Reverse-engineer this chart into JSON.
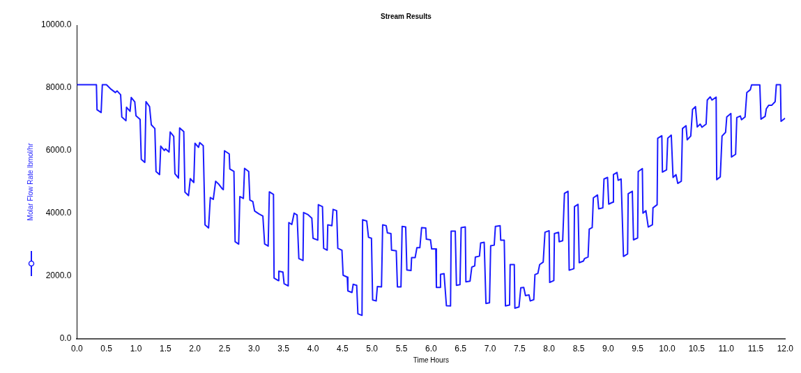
{
  "chart_data": {
    "type": "line",
    "title": "Stream Results",
    "xlabel": "Time Hours",
    "ylabel": "Molar Flow Rate lbmol/hr",
    "xlim": [
      0,
      12
    ],
    "ylim": [
      0,
      10000
    ],
    "xticks": [
      {
        "value": 0,
        "label": "0.0"
      },
      {
        "value": 0.5,
        "label": "0.5"
      },
      {
        "value": 1,
        "label": "1.0"
      },
      {
        "value": 1.5,
        "label": "1.5"
      },
      {
        "value": 2,
        "label": "2.0"
      },
      {
        "value": 2.5,
        "label": "2.5"
      },
      {
        "value": 3,
        "label": "3.0"
      },
      {
        "value": 3.5,
        "label": "3.5"
      },
      {
        "value": 4,
        "label": "4.0"
      },
      {
        "value": 4.5,
        "label": "4.5"
      },
      {
        "value": 5,
        "label": "5.0"
      },
      {
        "value": 5.5,
        "label": "5.5"
      },
      {
        "value": 6,
        "label": "6.0"
      },
      {
        "value": 6.5,
        "label": "6.5"
      },
      {
        "value": 7,
        "label": "7.0"
      },
      {
        "value": 7.5,
        "label": "7.5"
      },
      {
        "value": 8,
        "label": "8.0"
      },
      {
        "value": 8.5,
        "label": "8.5"
      },
      {
        "value": 9,
        "label": "9.0"
      },
      {
        "value": 9.5,
        "label": "9.5"
      },
      {
        "value": 10,
        "label": "10.0"
      },
      {
        "value": 10.5,
        "label": "10.5"
      },
      {
        "value": 11,
        "label": "11.0"
      },
      {
        "value": 11.5,
        "label": "11.5"
      },
      {
        "value": 12,
        "label": "12.0"
      }
    ],
    "yticks": [
      {
        "value": 0,
        "label": "0.0"
      },
      {
        "value": 2000,
        "label": "2000.0"
      },
      {
        "value": 4000,
        "label": "4000.0"
      },
      {
        "value": 6000,
        "label": "6000.0"
      },
      {
        "value": 8000,
        "label": "8000.0"
      },
      {
        "value": 10000,
        "label": "10000.0"
      }
    ],
    "grid": false,
    "marker": "none",
    "line_style": "solid",
    "series": [
      {
        "color": "#1a1aff",
        "x": [
          0,
          0.33,
          0.34,
          0.41,
          0.43,
          0.5,
          0.58,
          0.65,
          0.68,
          0.74,
          0.76,
          0.83,
          0.84,
          0.9,
          0.92,
          0.98,
          1.0,
          1.07,
          1.09,
          1.15,
          1.17,
          1.23,
          1.26,
          1.32,
          1.34,
          1.4,
          1.42,
          1.48,
          1.5,
          1.56,
          1.58,
          1.64,
          1.66,
          1.72,
          1.74,
          1.81,
          1.83,
          1.89,
          1.92,
          1.98,
          2.0,
          2.06,
          2.08,
          2.14,
          2.17,
          2.23,
          2.26,
          2.31,
          2.35,
          2.4,
          2.46,
          2.48,
          2.5,
          2.58,
          2.59,
          2.66,
          2.68,
          2.74,
          2.76,
          2.82,
          2.84,
          2.91,
          2.93,
          2.98,
          3.01,
          3.08,
          3.15,
          3.18,
          3.24,
          3.26,
          3.33,
          3.34,
          3.41,
          3.42,
          3.49,
          3.51,
          3.58,
          3.59,
          3.64,
          3.68,
          3.73,
          3.76,
          3.83,
          3.84,
          3.91,
          3.98,
          4.0,
          4.08,
          4.09,
          4.16,
          4.18,
          4.24,
          4.25,
          4.32,
          4.34,
          4.4,
          4.42,
          4.49,
          4.51,
          4.58,
          4.59,
          4.66,
          4.68,
          4.74,
          4.76,
          4.83,
          4.84,
          4.91,
          4.94,
          4.99,
          5.01,
          5.07,
          5.09,
          5.16,
          5.18,
          5.24,
          5.26,
          5.32,
          5.33,
          5.41,
          5.43,
          5.49,
          5.51,
          5.57,
          5.59,
          5.66,
          5.67,
          5.73,
          5.76,
          5.81,
          5.84,
          5.91,
          5.92,
          5.99,
          6.01,
          6.08,
          6.09,
          6.15,
          6.16,
          6.22,
          6.26,
          6.33,
          6.34,
          6.41,
          6.43,
          6.49,
          6.51,
          6.58,
          6.59,
          6.66,
          6.69,
          6.74,
          6.75,
          6.82,
          6.84,
          6.9,
          6.93,
          6.99,
          7.01,
          7.07,
          7.09,
          7.17,
          7.18,
          7.24,
          7.26,
          7.33,
          7.34,
          7.41,
          7.42,
          7.49,
          7.52,
          7.57,
          7.6,
          7.66,
          7.68,
          7.74,
          7.76,
          7.81,
          7.84,
          7.9,
          7.93,
          8.0,
          8.01,
          8.08,
          8.09,
          8.16,
          8.17,
          8.23,
          8.26,
          8.32,
          8.34,
          8.42,
          8.43,
          8.49,
          8.51,
          8.58,
          8.6,
          8.66,
          8.68,
          8.73,
          8.75,
          8.82,
          8.84,
          8.91,
          8.93,
          8.99,
          9.01,
          9.08,
          9.09,
          9.15,
          9.17,
          9.22,
          9.26,
          9.33,
          9.34,
          9.41,
          9.43,
          9.5,
          9.51,
          9.58,
          9.59,
          9.64,
          9.68,
          9.75,
          9.76,
          9.83,
          9.84,
          9.91,
          9.92,
          9.99,
          10.01,
          10.07,
          10.1,
          10.15,
          10.18,
          10.24,
          10.26,
          10.32,
          10.34,
          10.4,
          10.43,
          10.48,
          10.51,
          10.56,
          10.59,
          10.66,
          10.68,
          10.73,
          10.76,
          10.83,
          10.84,
          10.9,
          10.93,
          10.99,
          11.01,
          11.08,
          11.09,
          11.16,
          11.18,
          11.24,
          11.26,
          11.32,
          11.35,
          11.41,
          11.43,
          11.57,
          11.59,
          11.66,
          11.68,
          11.72,
          11.77,
          11.83,
          11.85,
          11.92,
          11.93,
          12.0
        ],
        "values": [
          8100,
          8100,
          7300,
          7210,
          8100,
          8100,
          7950,
          7850,
          7900,
          7780,
          7070,
          6950,
          7380,
          7250,
          7690,
          7550,
          7110,
          6990,
          5720,
          5620,
          7560,
          7400,
          6820,
          6700,
          5330,
          5230,
          6140,
          6000,
          6050,
          5950,
          6590,
          6450,
          5260,
          5120,
          6720,
          6600,
          4670,
          4560,
          5100,
          4980,
          6230,
          6100,
          6250,
          6150,
          3630,
          3530,
          4500,
          4440,
          5020,
          4930,
          4780,
          4750,
          5990,
          5890,
          5410,
          5330,
          3090,
          3010,
          4530,
          4470,
          5430,
          5330,
          4420,
          4370,
          4070,
          3980,
          3910,
          3020,
          2950,
          4680,
          4600,
          1930,
          1850,
          2150,
          2120,
          1750,
          1680,
          3700,
          3640,
          4000,
          3940,
          2550,
          2490,
          4020,
          3960,
          3840,
          3200,
          3140,
          4270,
          4210,
          2880,
          2820,
          3630,
          3600,
          4120,
          4080,
          2880,
          2820,
          2020,
          1960,
          1520,
          1470,
          1730,
          1700,
          790,
          740,
          3790,
          3750,
          3230,
          3200,
          1230,
          1200,
          1660,
          1650,
          3630,
          3600,
          3370,
          3350,
          2820,
          2800,
          1650,
          1650,
          3580,
          3560,
          2190,
          2170,
          2580,
          2580,
          2900,
          2900,
          3540,
          3530,
          3170,
          3150,
          2860,
          2860,
          1630,
          1630,
          2050,
          2070,
          1050,
          1040,
          3430,
          3430,
          1700,
          1720,
          3540,
          3560,
          1810,
          1830,
          2280,
          2320,
          2600,
          2630,
          3050,
          3070,
          1120,
          1140,
          2960,
          2980,
          3580,
          3600,
          3140,
          3140,
          1040,
          1070,
          2360,
          2360,
          970,
          1010,
          1620,
          1630,
          1370,
          1390,
          1200,
          1240,
          2040,
          2080,
          2360,
          2440,
          3390,
          3440,
          1790,
          1850,
          3350,
          3390,
          3090,
          3120,
          4630,
          4700,
          2180,
          2230,
          4210,
          4280,
          2420,
          2470,
          2550,
          2600,
          3490,
          3540,
          4490,
          4580,
          4140,
          4170,
          5090,
          5140,
          4290,
          4350,
          5230,
          5300,
          5050,
          5090,
          2620,
          2700,
          4620,
          4700,
          3150,
          3210,
          5330,
          5420,
          4000,
          4080,
          3560,
          3630,
          4170,
          4270,
          6390,
          6470,
          5310,
          5380,
          6390,
          6490,
          5140,
          5230,
          4950,
          5020,
          6700,
          6790,
          6340,
          6460,
          7310,
          7400,
          6750,
          6840,
          6740,
          6840,
          7610,
          7710,
          7610,
          7700,
          5070,
          5160,
          6460,
          6580,
          7070,
          7180,
          5790,
          5880,
          7050,
          7100,
          6980,
          7070,
          7850,
          7940,
          8090,
          8090,
          7000,
          7090,
          7330,
          7440,
          7440,
          7560,
          8100,
          8100,
          6930,
          7030
        ]
      }
    ]
  }
}
